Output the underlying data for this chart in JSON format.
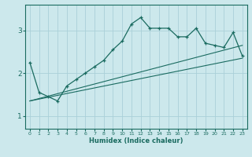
{
  "xlabel": "Humidex (Indice chaleur)",
  "bg_color": "#cce8ec",
  "grid_color": "#aad0d8",
  "line_color": "#1a6b60",
  "xlim": [
    -0.5,
    23.5
  ],
  "ylim": [
    0.7,
    3.6
  ],
  "yticks": [
    1,
    2,
    3
  ],
  "xticks": [
    0,
    1,
    2,
    3,
    4,
    5,
    6,
    7,
    8,
    9,
    10,
    11,
    12,
    13,
    14,
    15,
    16,
    17,
    18,
    19,
    20,
    21,
    22,
    23
  ],
  "line1_x": [
    0,
    1,
    2,
    3,
    4,
    5,
    6,
    7,
    8,
    9,
    10,
    11,
    12,
    13,
    14,
    15,
    16,
    17,
    18,
    19,
    20,
    21,
    22,
    23
  ],
  "line1_y": [
    2.25,
    1.55,
    1.45,
    1.35,
    1.7,
    1.85,
    2.0,
    2.15,
    2.3,
    2.55,
    2.75,
    3.15,
    3.3,
    3.05,
    3.05,
    3.05,
    2.85,
    2.85,
    3.05,
    2.7,
    2.65,
    2.6,
    2.95,
    2.4
  ],
  "line2_x": [
    0,
    23
  ],
  "line2_y": [
    1.35,
    2.35
  ],
  "line3_x": [
    0,
    23
  ],
  "line3_y": [
    1.35,
    2.65
  ]
}
